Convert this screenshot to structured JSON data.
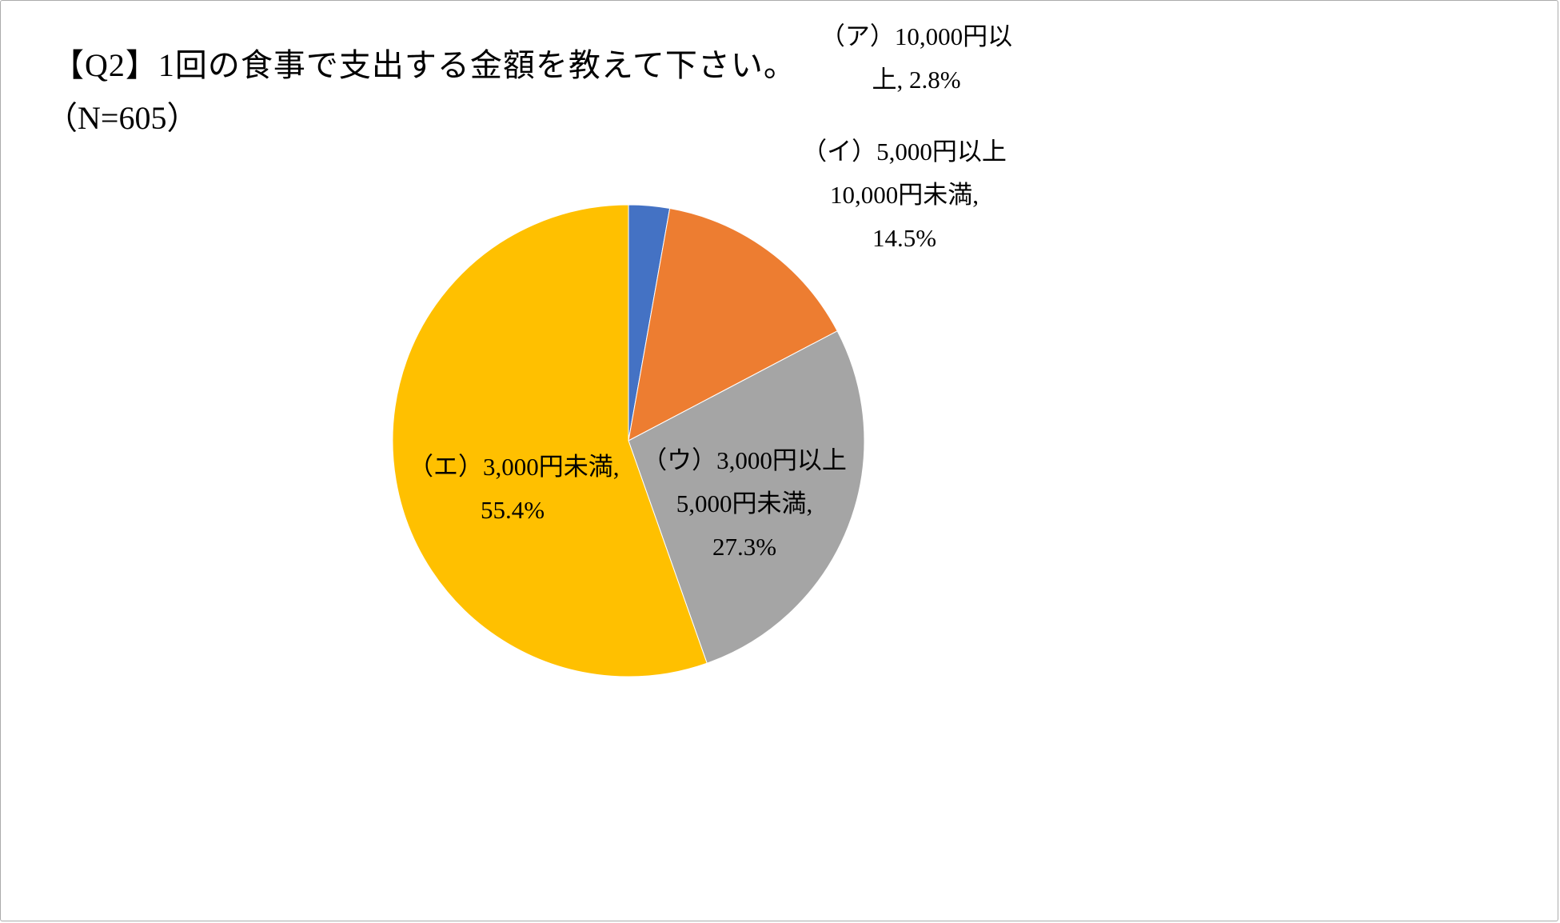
{
  "chart_data": {
    "type": "pie",
    "title": "【Q2】1回の食事で支出する金額を教えて下さい。",
    "subtitle": "（N=605）",
    "start_angle_deg": 0,
    "direction": "clockwise",
    "legend": "none",
    "grid": false,
    "slices": [
      {
        "name": "(ア)10,000円以上",
        "value": 2.8,
        "color": "#4472C4",
        "label_placement": "outside-top-right",
        "label_lines": [
          "（ア）10,000円以",
          "上, 2.8%"
        ]
      },
      {
        "name": "(イ)5,000円以上10,000円未満",
        "value": 14.5,
        "color": "#ED7D31",
        "label_placement": "outside-right",
        "label_lines": [
          "（イ）5,000円以上",
          "10,000円未満,",
          "14.5%"
        ]
      },
      {
        "name": "(ウ)3,000円以上5,000円未満",
        "value": 27.3,
        "color": "#A5A5A5",
        "label_placement": "inside",
        "label_lines": [
          "（ウ）3,000円以上",
          "5,000円未満,",
          "27.3%"
        ]
      },
      {
        "name": "(エ)3,000円未満",
        "value": 55.4,
        "color": "#FFC000",
        "label_placement": "inside",
        "label_lines": [
          "（エ）3,000円未満,",
          "55.4%"
        ]
      }
    ]
  }
}
